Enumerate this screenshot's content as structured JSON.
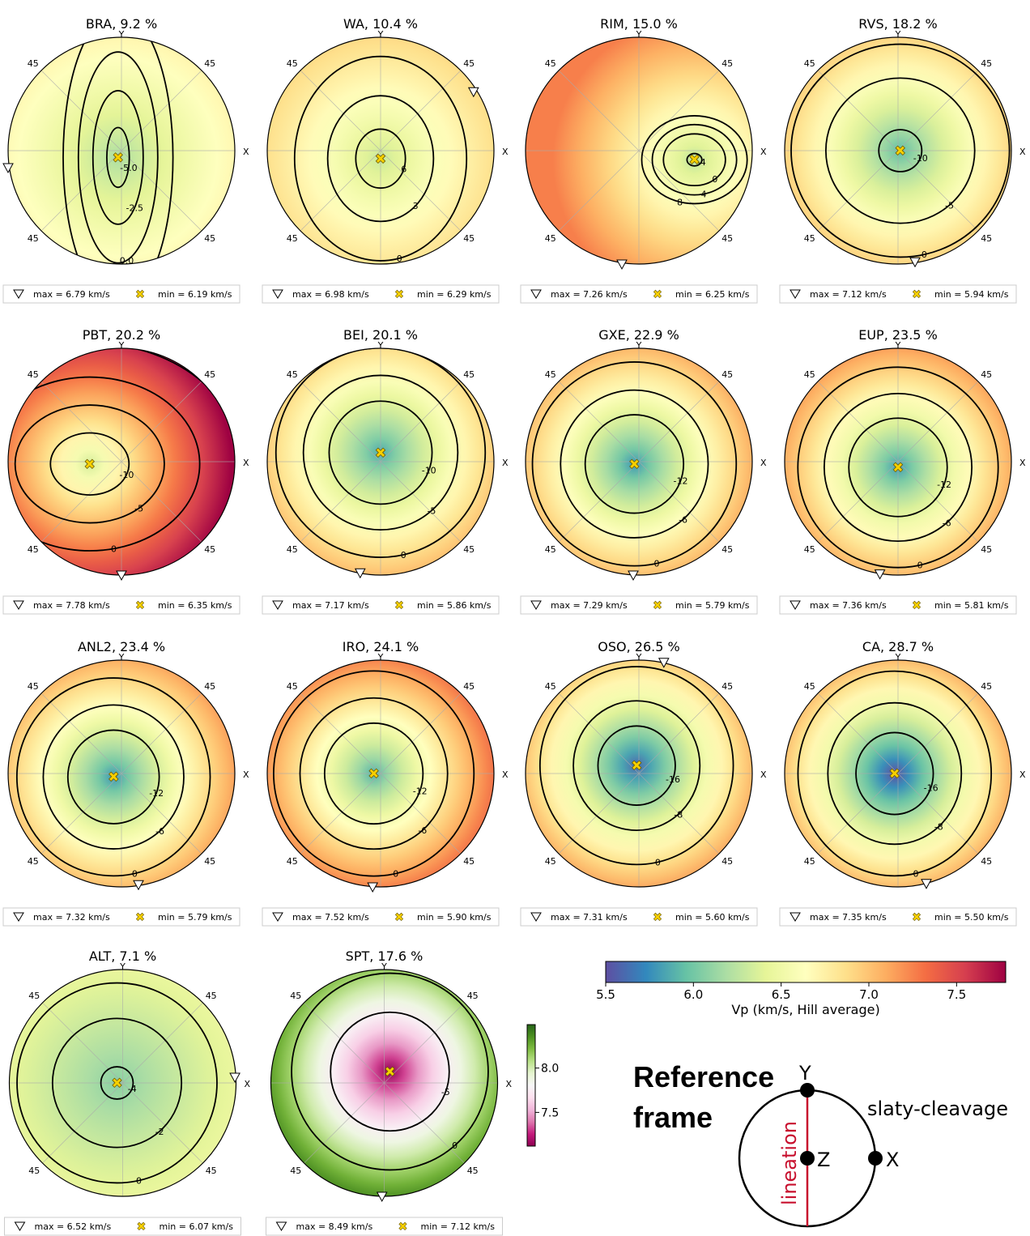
{
  "labels": {
    "y_axis": "Y",
    "x_axis": "X",
    "dip": "45"
  },
  "colors": {
    "vp_cmap": [
      "#5e4fa2",
      "#3288bd",
      "#66c2a5",
      "#abdda4",
      "#e6f598",
      "#ffffbf",
      "#fee08b",
      "#fdae61",
      "#f46d43",
      "#d53e4f",
      "#9e0142"
    ],
    "vs_cmap": [
      "#8e0152",
      "#c51b7d",
      "#de77ae",
      "#f1b6da",
      "#fde0ef",
      "#f7f7f7",
      "#e6f5d0",
      "#b8e186",
      "#7fbc41",
      "#4d9221",
      "#276419"
    ],
    "max_marker": "#ffffff",
    "min_marker": "#f7d000",
    "lineation": "#c8102e"
  },
  "chart_data": [
    {
      "type": "pole-figure",
      "sample": "BRA",
      "title": "BRA, 9.2 %",
      "max_label": "max = 6.79 km/s",
      "min_label": "min = 6.19 km/s",
      "vmax": 6.79,
      "vmin": 6.19,
      "center": [
        -0.03,
        0.06
      ],
      "radii": [
        0.32,
        0.85
      ],
      "max_dir": [
        -1.0,
        -0.15
      ],
      "contours": [
        {
          "level": 0.17,
          "text": "-5.0"
        },
        {
          "level": 0.38,
          "text": "-2.5"
        },
        {
          "level": 0.6,
          "text": "0.0"
        },
        {
          "level": 0.83,
          "text": "2.5"
        }
      ]
    },
    {
      "type": "pole-figure",
      "sample": "WA",
      "title": "WA, 10.4 %",
      "max_label": "max = 6.98 km/s",
      "min_label": "min = 6.29 km/s",
      "vmax": 6.98,
      "vmin": 6.29,
      "center": [
        0.0,
        0.07
      ],
      "radii": [
        0.8,
        0.95
      ],
      "max_dir": [
        0.82,
        0.52
      ],
      "contours": [
        {
          "level": 0.15,
          "text": "6"
        },
        {
          "level": 0.32,
          "text": "3"
        },
        {
          "level": 0.52,
          "text": "0"
        },
        {
          "level": 0.78,
          "text": "3"
        }
      ]
    },
    {
      "type": "pole-figure",
      "sample": "RIM",
      "title": "RIM, 15.0 %",
      "max_label": "max = 7.26 km/s",
      "min_label": "min = 6.25 km/s",
      "vmax": 7.26,
      "vmin": 6.25,
      "center": [
        0.49,
        0.08
      ],
      "radii": [
        0.3,
        0.25
      ],
      "max_dir": [
        -0.15,
        -1.0
      ],
      "contours": [
        {
          "level": 0.12,
          "text": "-4"
        },
        {
          "level": 0.5,
          "text": "0"
        },
        {
          "level": 0.68,
          "text": "4"
        },
        {
          "level": 0.85,
          "text": "8"
        }
      ]
    },
    {
      "type": "pole-figure",
      "sample": "RVS",
      "title": "RVS, 18.2 %",
      "max_label": "max = 7.12 km/s",
      "min_label": "min = 5.94 km/s",
      "vmax": 7.12,
      "vmin": 5.94,
      "center": [
        0.02,
        0.0
      ],
      "radii": [
        0.8,
        0.78
      ],
      "max_dir": [
        0.15,
        -0.98
      ],
      "contours": [
        {
          "level": 0.13,
          "text": "-10"
        },
        {
          "level": 0.45,
          "text": "-5"
        },
        {
          "level": 0.66,
          "text": "0"
        },
        {
          "level": 0.86,
          "text": "5"
        }
      ]
    },
    {
      "type": "pole-figure",
      "sample": "PBT",
      "title": "PBT, 20.2 %",
      "max_label": "max = 7.78 km/s",
      "min_label": "min = 6.35 km/s",
      "vmax": 7.78,
      "vmin": 6.35,
      "center": [
        -0.28,
        0.02
      ],
      "radii": [
        0.95,
        0.75
      ],
      "max_dir": [
        0.0,
        -1.0
      ],
      "contours": [
        {
          "level": 0.2,
          "text": "-10"
        },
        {
          "level": 0.38,
          "text": "-5"
        },
        {
          "level": 0.56,
          "text": "0"
        },
        {
          "level": 0.78,
          "text": "5"
        }
      ]
    },
    {
      "type": "pole-figure",
      "sample": "BEI",
      "title": "BEI, 20.1 %",
      "max_label": "max = 7.17 km/s",
      "min_label": "min = 5.86 km/s",
      "vmax": 7.17,
      "vmin": 5.86,
      "center": [
        0.0,
        -0.08
      ],
      "radii": [
        0.83,
        0.83
      ],
      "max_dir": [
        -0.18,
        -0.98
      ],
      "contours": [
        {
          "level": 0.3,
          "text": "-10"
        },
        {
          "level": 0.45,
          "text": "-5"
        },
        {
          "level": 0.61,
          "text": "0"
        },
        {
          "level": 0.82,
          "text": "5"
        }
      ]
    },
    {
      "type": "pole-figure",
      "sample": "GXE",
      "title": "GXE, 22.9 %",
      "max_label": "max = 7.29 km/s",
      "min_label": "min = 5.79 km/s",
      "vmax": 7.29,
      "vmin": 5.79,
      "center": [
        -0.04,
        0.02
      ],
      "radii": [
        0.85,
        0.85
      ],
      "max_dir": [
        -0.05,
        -1.0
      ],
      "contours": [
        {
          "level": 0.28,
          "text": "-12"
        },
        {
          "level": 0.42,
          "text": "-6"
        },
        {
          "level": 0.58,
          "text": "0"
        },
        {
          "level": 0.78,
          "text": "6"
        }
      ]
    },
    {
      "type": "pole-figure",
      "sample": "EUP",
      "title": "EUP, 23.5 %",
      "max_label": "max = 7.36 km/s",
      "min_label": "min = 5.81 km/s",
      "vmax": 7.36,
      "vmin": 5.81,
      "center": [
        0.0,
        0.05
      ],
      "radii": [
        0.85,
        0.85
      ],
      "max_dir": [
        -0.16,
        -0.99
      ],
      "contours": [
        {
          "level": 0.28,
          "text": "-12"
        },
        {
          "level": 0.42,
          "text": "-6"
        },
        {
          "level": 0.57,
          "text": "0"
        },
        {
          "level": 0.78,
          "text": "6"
        }
      ]
    },
    {
      "type": "pole-figure",
      "sample": "ANL2",
      "title": "ANL2, 23.4 %",
      "max_label": "max = 7.32 km/s",
      "min_label": "min = 5.79 km/s",
      "vmax": 7.32,
      "vmin": 5.79,
      "center": [
        -0.07,
        0.03
      ],
      "radii": [
        0.85,
        0.87
      ],
      "max_dir": [
        0.15,
        -0.98
      ],
      "contours": [
        {
          "level": 0.26,
          "text": "-12"
        },
        {
          "level": 0.4,
          "text": "-6"
        },
        {
          "level": 0.55,
          "text": "0"
        },
        {
          "level": 0.78,
          "text": "6"
        }
      ]
    },
    {
      "type": "pole-figure",
      "sample": "IRO",
      "title": "IRO, 24.1 %",
      "max_label": "max = 7.52 km/s",
      "min_label": "min = 5.90 km/s",
      "vmax": 7.52,
      "vmin": 5.9,
      "center": [
        -0.06,
        0.0
      ],
      "radii": [
        0.85,
        0.87
      ],
      "max_dir": [
        -0.07,
        -1.0
      ],
      "contours": [
        {
          "level": 0.28,
          "text": "-12"
        },
        {
          "level": 0.42,
          "text": "-6"
        },
        {
          "level": 0.57,
          "text": "0"
        },
        {
          "level": 0.77,
          "text": "6"
        }
      ]
    },
    {
      "type": "pole-figure",
      "sample": "OSO",
      "title": "OSO, 26.5 %",
      "max_label": "max = 7.31 km/s",
      "min_label": "min = 5.60 km/s",
      "vmax": 7.31,
      "vmin": 5.6,
      "center": [
        -0.02,
        -0.07
      ],
      "radii": [
        0.85,
        0.87
      ],
      "max_dir": [
        0.22,
        0.98
      ],
      "contours": [
        {
          "level": 0.22,
          "text": "-16"
        },
        {
          "level": 0.36,
          "text": "-8"
        },
        {
          "level": 0.55,
          "text": "0"
        },
        {
          "level": 0.78,
          "text": "8"
        }
      ]
    },
    {
      "type": "pole-figure",
      "sample": "CA",
      "title": "CA, 28.7 %",
      "max_label": "max = 7.35 km/s",
      "min_label": "min = 5.50 km/s",
      "vmax": 7.35,
      "vmin": 5.5,
      "center": [
        -0.03,
        0.0
      ],
      "radii": [
        0.85,
        0.9
      ],
      "max_dir": [
        0.25,
        -0.97
      ],
      "contours": [
        {
          "level": 0.22,
          "text": "-16"
        },
        {
          "level": 0.38,
          "text": "-8"
        },
        {
          "level": 0.55,
          "text": "0"
        },
        {
          "level": 0.8,
          "text": "8"
        }
      ]
    },
    {
      "type": "pole-figure",
      "sample": "ALT",
      "title": "ALT, 7.1 %",
      "max_label": "max = 6.52 km/s",
      "min_label": "min = 6.07 km/s",
      "vmax": 6.52,
      "vmin": 6.07,
      "center": [
        -0.05,
        0.0
      ],
      "radii": [
        0.78,
        0.78
      ],
      "max_dir": [
        0.99,
        0.05
      ],
      "contours": [
        {
          "level": 0.1,
          "text": "-4"
        },
        {
          "level": 0.4,
          "text": "-2"
        },
        {
          "level": 0.62,
          "text": "0"
        },
        {
          "level": 0.85,
          "text": "2"
        }
      ]
    },
    {
      "type": "pole-figure",
      "sample": "SPT",
      "title": "SPT, 17.6 %",
      "max_label": "max = 8.49 km/s",
      "min_label": "min = 7.12 km/s",
      "vmax": 8.49,
      "vmin": 7.12,
      "center": [
        0.05,
        -0.1
      ],
      "radii": [
        0.82,
        0.82
      ],
      "max_dir": [
        -0.02,
        -1.0
      ],
      "contours": [
        {
          "level": 0.35,
          "text": "-5"
        },
        {
          "level": 0.58,
          "text": "0"
        },
        {
          "level": 0.82,
          "text": "5"
        }
      ]
    }
  ],
  "vp_colorbar": {
    "label": "Vp (km/s, Hill average)",
    "ticks": [
      5.5,
      6.0,
      6.5,
      7.0,
      7.5
    ],
    "tick_labels": [
      "5.5",
      "6.0",
      "6.5",
      "7.0",
      "7.5"
    ],
    "range": [
      5.5,
      7.78
    ]
  },
  "spt_colorbar": {
    "ticks": [
      7.5,
      8.0
    ],
    "tick_labels": [
      "7.5",
      "8.0"
    ],
    "range": [
      7.12,
      8.49
    ]
  },
  "reference_frame": {
    "title_line1": "Reference",
    "title_line2": "frame",
    "y": "Y",
    "z": "Z",
    "x": "X",
    "lineation": "lineation",
    "cleavage": "slaty-cleavage"
  }
}
